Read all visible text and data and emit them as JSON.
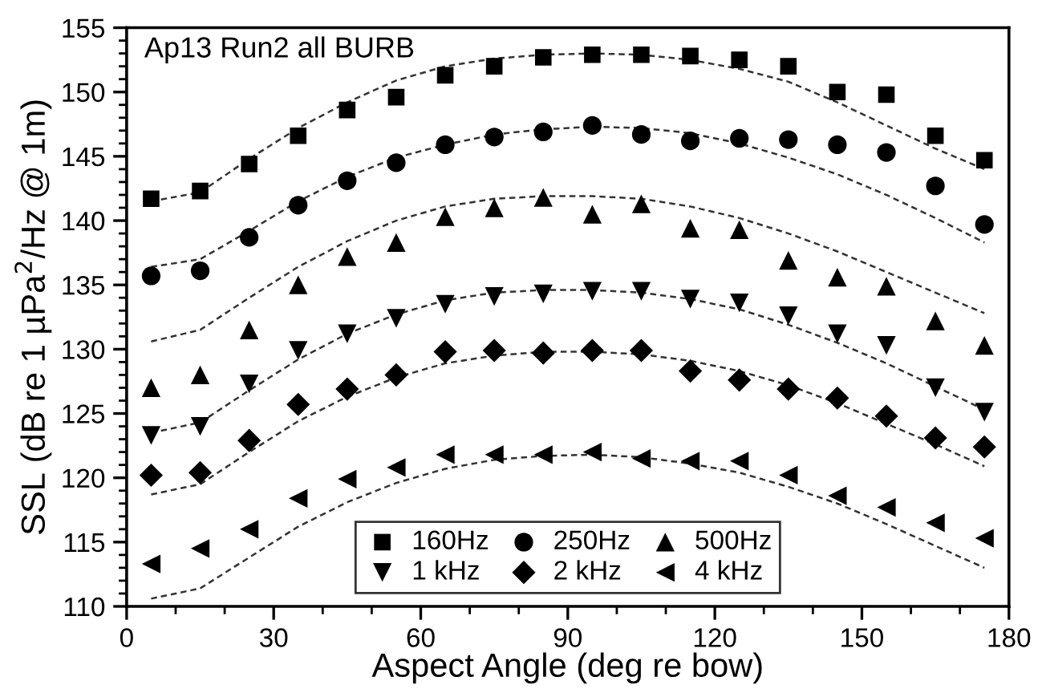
{
  "chart_data": {
    "type": "scatter",
    "title": "Ap13 Run2 all BURB",
    "xlabel": "Aspect Angle (deg re bow)",
    "ylabel": "SSL (dB re 1 µPa$^{2}$/Hz @ 1m)",
    "x": [
      5,
      15,
      25,
      35,
      45,
      55,
      65,
      75,
      85,
      95,
      105,
      115,
      125,
      135,
      145,
      155,
      165,
      175
    ],
    "series": [
      {
        "name": "160Hz",
        "color": "#000000",
        "marker": "square",
        "values": [
          141.7,
          142.3,
          144.4,
          146.6,
          148.6,
          149.6,
          151.3,
          152.0,
          152.7,
          152.9,
          152.9,
          152.8,
          152.5,
          152.0,
          150.0,
          149.8,
          146.6,
          144.7
        ]
      },
      {
        "name": "250Hz",
        "color": "#000000",
        "marker": "circle",
        "values": [
          135.7,
          136.1,
          138.7,
          141.2,
          143.1,
          144.5,
          145.9,
          146.5,
          146.9,
          147.4,
          146.7,
          146.2,
          146.4,
          146.3,
          145.9,
          145.3,
          142.7,
          139.7
        ]
      },
      {
        "name": "500Hz",
        "color": "#000000",
        "marker": "triangle",
        "values": [
          127.0,
          128.0,
          131.5,
          135.0,
          137.2,
          138.3,
          140.3,
          141.0,
          141.8,
          140.5,
          141.3,
          139.4,
          139.3,
          136.9,
          135.6,
          134.9,
          132.2,
          130.3
        ]
      },
      {
        "name": "1 kHz",
        "color": "#000000",
        "marker": "triangle-down",
        "values": [
          123.3,
          124.0,
          127.3,
          129.9,
          131.2,
          132.4,
          133.5,
          134.1,
          134.3,
          134.5,
          134.5,
          133.9,
          133.6,
          132.6,
          131.2,
          130.3,
          127.0,
          125.1
        ]
      },
      {
        "name": "2 kHz",
        "color": "#000000",
        "marker": "diamond",
        "values": [
          120.2,
          120.4,
          122.9,
          125.7,
          126.9,
          128.0,
          129.8,
          129.9,
          129.7,
          129.9,
          129.9,
          128.3,
          127.6,
          126.9,
          126.2,
          124.8,
          123.1,
          122.4
        ]
      },
      {
        "name": "4 kHz",
        "color": "#000000",
        "marker": "triangle-left",
        "values": [
          113.3,
          114.5,
          116.0,
          118.4,
          119.9,
          120.8,
          121.8,
          121.8,
          121.8,
          122.0,
          121.5,
          121.3,
          121.3,
          120.2,
          118.6,
          117.7,
          116.5,
          115.3
        ]
      },
      {
        "type": "line",
        "color": "#333333",
        "line_style": "dashed",
        "values": [
          141.5,
          142.2,
          144.8,
          147.2,
          149.2,
          150.9,
          152.0,
          152.6,
          152.9,
          153.0,
          152.9,
          152.5,
          151.8,
          150.8,
          149.2,
          147.4,
          145.6,
          144.0
        ]
      },
      {
        "type": "line",
        "color": "#333333",
        "line_style": "dashed",
        "values": [
          136.4,
          137.0,
          139.2,
          141.5,
          143.4,
          144.9,
          145.9,
          146.7,
          147.1,
          147.3,
          147.2,
          146.8,
          146.0,
          144.9,
          143.6,
          142.0,
          140.2,
          138.3
        ]
      },
      {
        "type": "line",
        "color": "#333333",
        "line_style": "dashed",
        "values": [
          130.6,
          131.5,
          134.0,
          136.4,
          138.4,
          140.0,
          141.1,
          141.7,
          141.9,
          141.9,
          141.7,
          141.1,
          140.2,
          139.0,
          137.6,
          136.0,
          134.4,
          132.8
        ]
      },
      {
        "type": "line",
        "color": "#333333",
        "line_style": "dashed",
        "values": [
          123.5,
          124.3,
          126.8,
          129.2,
          131.2,
          132.7,
          133.8,
          134.4,
          134.6,
          134.6,
          134.4,
          133.9,
          133.1,
          131.9,
          130.5,
          128.9,
          127.1,
          125.3
        ]
      },
      {
        "type": "line",
        "color": "#333333",
        "line_style": "dashed",
        "values": [
          118.7,
          119.5,
          122.0,
          124.4,
          126.3,
          127.8,
          128.9,
          129.5,
          129.8,
          129.8,
          129.6,
          129.1,
          128.3,
          127.2,
          125.8,
          124.2,
          122.6,
          120.9
        ]
      },
      {
        "type": "line",
        "color": "#333333",
        "line_style": "dashed",
        "values": [
          110.6,
          111.4,
          113.8,
          116.2,
          118.1,
          119.6,
          120.7,
          121.4,
          121.7,
          121.8,
          121.6,
          121.1,
          120.4,
          119.3,
          118.0,
          116.4,
          114.7,
          113.0
        ]
      }
    ],
    "xlim": [
      0,
      180
    ],
    "xticks": [
      0,
      30,
      60,
      90,
      120,
      150,
      180
    ],
    "ylim": [
      110,
      155
    ],
    "yticks": [
      110,
      115,
      120,
      125,
      130,
      135,
      140,
      145,
      150,
      155
    ],
    "grid": false,
    "legend": "bottom"
  }
}
